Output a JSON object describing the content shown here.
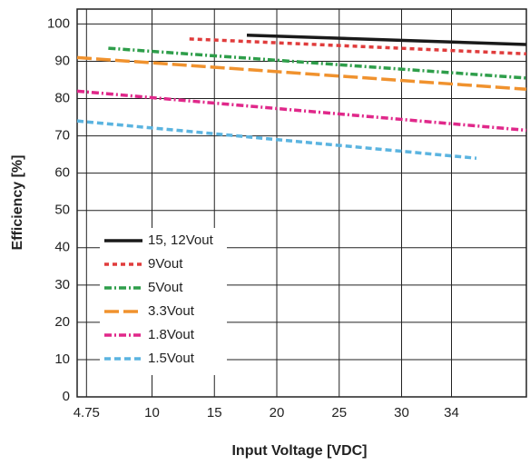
{
  "chart_data": {
    "type": "line",
    "x_label": "Input Voltage [VDC]",
    "y_label": "Efficiency [%]",
    "xlim": [
      4,
      40
    ],
    "ylim": [
      0,
      104
    ],
    "xticks": [
      4.75,
      10,
      15,
      20,
      25,
      30,
      34
    ],
    "yticks": [
      0,
      10,
      20,
      30,
      40,
      50,
      60,
      70,
      80,
      90,
      100
    ],
    "grid": true,
    "legend": "lower-left",
    "series": [
      {
        "name": "15, 12Vout",
        "color": "#1a1a1a",
        "dash": "solid",
        "x": [
          17.6,
          40
        ],
        "values": [
          97,
          94.5
        ]
      },
      {
        "name": "9Vout",
        "color": "#e03c3c",
        "dash": "dotted",
        "x": [
          13,
          40
        ],
        "values": [
          96,
          92
        ]
      },
      {
        "name": "5Vout",
        "color": "#2e9e4a",
        "dash": "dash-dot",
        "x": [
          6.5,
          40
        ],
        "values": [
          93.5,
          85.5
        ]
      },
      {
        "name": "3.3Vout",
        "color": "#f0922e",
        "dash": "long-dash",
        "x": [
          4,
          40
        ],
        "values": [
          91,
          82.5
        ]
      },
      {
        "name": "1.8Vout",
        "color": "#e0288a",
        "dash": "dash-dot",
        "x": [
          4,
          40
        ],
        "values": [
          82,
          71.5
        ]
      },
      {
        "name": "1.5Vout",
        "color": "#5bb4e0",
        "dash": "dash",
        "x": [
          4,
          36
        ],
        "values": [
          74,
          64
        ]
      }
    ]
  }
}
